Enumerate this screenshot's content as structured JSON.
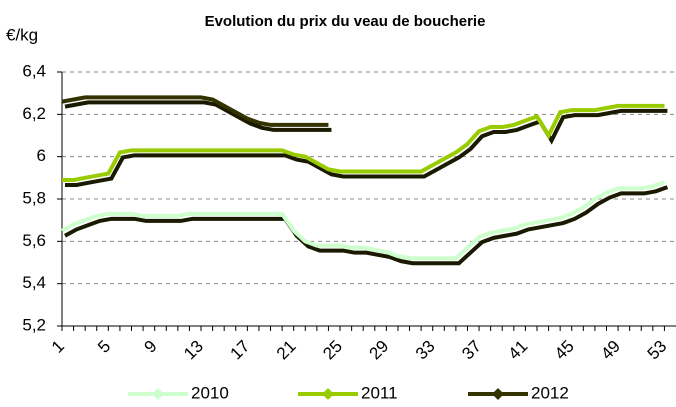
{
  "chart_data": {
    "type": "line",
    "title": "Evolution du prix du veau de boucherie",
    "y_label": "€/kg",
    "x": [
      1,
      2,
      3,
      4,
      5,
      6,
      7,
      8,
      9,
      10,
      11,
      12,
      13,
      14,
      15,
      16,
      17,
      18,
      19,
      20,
      21,
      22,
      23,
      24,
      25,
      26,
      27,
      28,
      29,
      30,
      31,
      32,
      33,
      34,
      35,
      36,
      37,
      38,
      39,
      40,
      41,
      42,
      43,
      44,
      45,
      46,
      47,
      48,
      49,
      50,
      51,
      52,
      53
    ],
    "xlim": [
      1,
      54
    ],
    "xticks": [
      1,
      5,
      9,
      13,
      17,
      21,
      25,
      29,
      33,
      37,
      41,
      45,
      49,
      53
    ],
    "ylim": [
      5.2,
      6.4
    ],
    "yticks": [
      {
        "value": 5.2,
        "label": "5,2"
      },
      {
        "value": 5.4,
        "label": "5,4"
      },
      {
        "value": 5.6,
        "label": "5,6"
      },
      {
        "value": 5.8,
        "label": "5,8"
      },
      6,
      {
        "value": 6.2,
        "label": "6,2"
      },
      {
        "value": 6.4,
        "label": "6,4"
      }
    ],
    "grid": true,
    "legend": "bottom",
    "series": [
      {
        "name": "2010",
        "color": "#ccffcc",
        "values": [
          5.65,
          5.68,
          5.7,
          5.72,
          5.73,
          5.73,
          5.73,
          5.72,
          5.72,
          5.72,
          5.72,
          5.73,
          5.73,
          5.73,
          5.73,
          5.73,
          5.73,
          5.73,
          5.73,
          5.73,
          5.65,
          5.6,
          5.58,
          5.58,
          5.58,
          5.57,
          5.57,
          5.56,
          5.55,
          5.53,
          5.52,
          5.52,
          5.52,
          5.52,
          5.52,
          5.57,
          5.62,
          5.64,
          5.65,
          5.66,
          5.68,
          5.69,
          5.7,
          5.71,
          5.73,
          5.76,
          5.8,
          5.83,
          5.85,
          5.85,
          5.85,
          5.86,
          5.88
        ]
      },
      {
        "name": "2011",
        "color": "#99cc00",
        "values": [
          5.89,
          5.89,
          5.9,
          5.91,
          5.92,
          6.02,
          6.03,
          6.03,
          6.03,
          6.03,
          6.03,
          6.03,
          6.03,
          6.03,
          6.03,
          6.03,
          6.03,
          6.03,
          6.03,
          6.03,
          6.01,
          6.0,
          5.97,
          5.94,
          5.93,
          5.93,
          5.93,
          5.93,
          5.93,
          5.93,
          5.93,
          5.93,
          5.96,
          5.99,
          6.02,
          6.06,
          6.12,
          6.14,
          6.14,
          6.15,
          6.17,
          6.19,
          6.1,
          6.21,
          6.22,
          6.22,
          6.22,
          6.23,
          6.24,
          6.24,
          6.24,
          6.24,
          6.24
        ]
      },
      {
        "name": "2012",
        "color": "#333300",
        "values": [
          6.26,
          6.27,
          6.28,
          6.28,
          6.28,
          6.28,
          6.28,
          6.28,
          6.28,
          6.28,
          6.28,
          6.28,
          6.28,
          6.27,
          6.24,
          6.21,
          6.18,
          6.16,
          6.15,
          6.15,
          6.15,
          6.15,
          6.15,
          6.15,
          null,
          null,
          null,
          null,
          null,
          null,
          null,
          null,
          null,
          null,
          null,
          null,
          null,
          null,
          null,
          null,
          null,
          null,
          null,
          null,
          null,
          null,
          null,
          null,
          null,
          null,
          null,
          null,
          null
        ]
      }
    ]
  }
}
